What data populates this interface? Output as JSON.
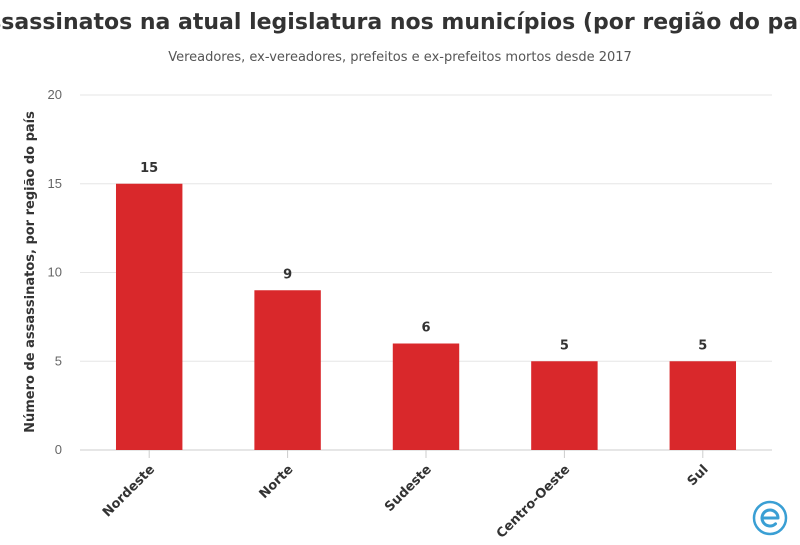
{
  "chart_data": {
    "type": "bar",
    "title": "Assassinatos na atual legislatura nos municípios (por região do país)",
    "subtitle": "Vereadores, ex-vereadores, prefeitos e ex-prefeitos mortos desde 2017",
    "xlabel": "",
    "ylabel": "Número de assassinatos, por região do país",
    "categories": [
      "Nordeste",
      "Norte",
      "Sudeste",
      "Centro-Oeste",
      "Sul"
    ],
    "values": [
      15,
      9,
      6,
      5,
      5
    ],
    "ylim": [
      0,
      20
    ],
    "yticks": [
      0,
      5,
      10,
      15,
      20
    ],
    "bar_color": "#d9282b",
    "grid": true,
    "legend": "none"
  },
  "logo": {
    "icon": "circle-e-logo-icon",
    "color": "#3a9fd4"
  }
}
